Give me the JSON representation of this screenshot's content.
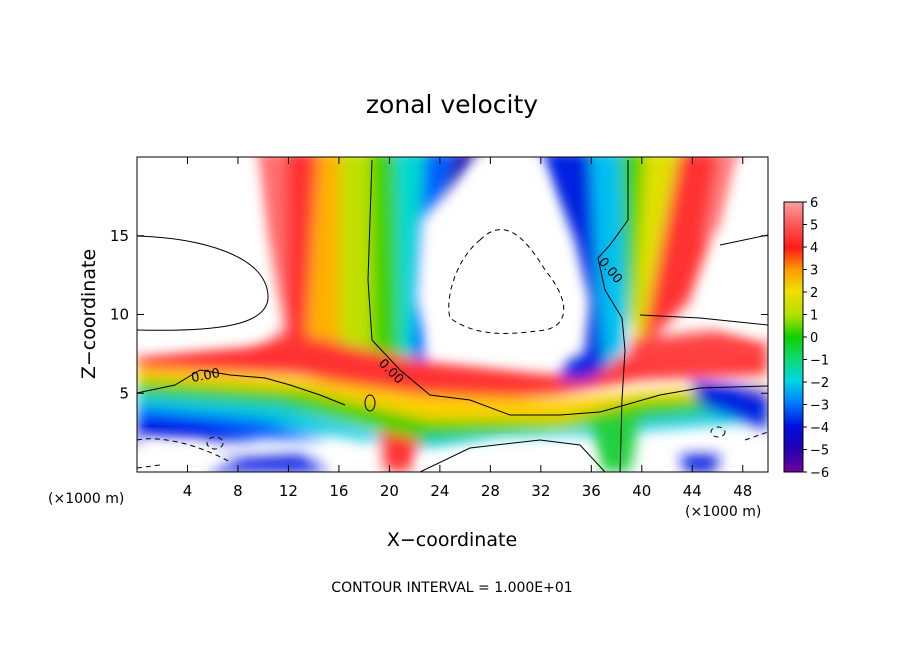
{
  "chart_data": {
    "type": "heatmap",
    "title": "zonal velocity",
    "xlabel": "X−coordinate",
    "ylabel": "Z−coordinate",
    "x_units_left": "(×1000 m)",
    "x_units_right": "(×1000 m)",
    "xlim": [
      0,
      50
    ],
    "ylim": [
      0,
      20
    ],
    "x_ticks": [
      4,
      8,
      12,
      16,
      20,
      24,
      28,
      32,
      36,
      40,
      44,
      48
    ],
    "x_tick_labels": [
      "4",
      "8",
      "12",
      "16",
      "20",
      "24",
      "28",
      "32",
      "36",
      "40",
      "44",
      "48"
    ],
    "y_ticks": [
      5,
      10,
      15
    ],
    "y_tick_labels": [
      "5",
      "10",
      "15"
    ],
    "colorbar": {
      "range": [
        -6,
        6
      ],
      "tick_labels": [
        "6",
        "5",
        "4",
        "3",
        "2",
        "1",
        "0",
        "−1",
        "−2",
        "−3",
        "−4",
        "−5",
        "−6"
      ]
    },
    "contour_labels": [
      "0.00",
      "0.00",
      "0.00"
    ],
    "footer": "CONTOUR INTERVAL = 1.000E+01",
    "grid": false
  }
}
